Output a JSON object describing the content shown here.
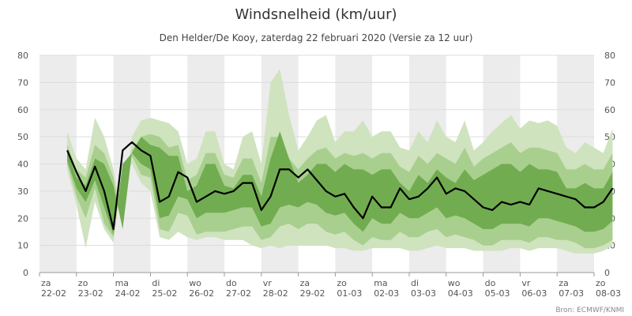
{
  "chart_data": {
    "type": "area",
    "title": "Windsnelheid (km/uur)",
    "subtitle": "Den Helder/De Kooy, zaterdag 22 februari 2020 (Versie za 12 uur)",
    "credit": "Bron: ECMWF/KNMI",
    "ylim": [
      0,
      80
    ],
    "yticks": [
      "0",
      "10",
      "20",
      "30",
      "40",
      "50",
      "60",
      "70",
      "80"
    ],
    "grid": true,
    "alternating_day_shading": true,
    "x_start": "2020-02-22",
    "x_end": "2020-03-08",
    "day_labels": [
      {
        "day": "za",
        "date": "22-02"
      },
      {
        "day": "zo",
        "date": "23-02"
      },
      {
        "day": "ma",
        "date": "24-02"
      },
      {
        "day": "di",
        "date": "25-02"
      },
      {
        "day": "wo",
        "date": "26-02"
      },
      {
        "day": "do",
        "date": "27-02"
      },
      {
        "day": "vr",
        "date": "28-02"
      },
      {
        "day": "za",
        "date": "29-02"
      },
      {
        "day": "zo",
        "date": "01-03"
      },
      {
        "day": "ma",
        "date": "02-03"
      },
      {
        "day": "di",
        "date": "03-03"
      },
      {
        "day": "wo",
        "date": "04-03"
      },
      {
        "day": "do",
        "date": "05-03"
      },
      {
        "day": "vr",
        "date": "06-03"
      },
      {
        "day": "za",
        "date": "07-03"
      },
      {
        "day": "zo",
        "date": "08-03"
      }
    ],
    "x": [
      "2020-02-22T18:00",
      "2020-02-23T00:00",
      "2020-02-23T06:00",
      "2020-02-23T12:00",
      "2020-02-23T18:00",
      "2020-02-24T00:00",
      "2020-02-24T06:00",
      "2020-02-24T12:00",
      "2020-02-24T18:00",
      "2020-02-25T00:00",
      "2020-02-25T06:00",
      "2020-02-25T12:00",
      "2020-02-25T18:00",
      "2020-02-26T00:00",
      "2020-02-26T06:00",
      "2020-02-26T12:00",
      "2020-02-26T18:00",
      "2020-02-27T00:00",
      "2020-02-27T06:00",
      "2020-02-27T12:00",
      "2020-02-27T18:00",
      "2020-02-28T00:00",
      "2020-02-28T06:00",
      "2020-02-28T12:00",
      "2020-02-28T18:00",
      "2020-02-29T00:00",
      "2020-02-29T06:00",
      "2020-02-29T12:00",
      "2020-02-29T18:00",
      "2020-03-01T00:00",
      "2020-03-01T06:00",
      "2020-03-01T12:00",
      "2020-03-01T18:00",
      "2020-03-02T00:00",
      "2020-03-02T06:00",
      "2020-03-02T12:00",
      "2020-03-02T18:00",
      "2020-03-03T00:00",
      "2020-03-03T06:00",
      "2020-03-03T12:00",
      "2020-03-03T18:00",
      "2020-03-04T00:00",
      "2020-03-04T06:00",
      "2020-03-04T12:00",
      "2020-03-04T18:00",
      "2020-03-05T00:00",
      "2020-03-05T06:00",
      "2020-03-05T12:00",
      "2020-03-05T18:00",
      "2020-03-06T00:00",
      "2020-03-06T06:00",
      "2020-03-06T12:00",
      "2020-03-06T18:00",
      "2020-03-07T00:00",
      "2020-03-07T06:00",
      "2020-03-07T12:00",
      "2020-03-07T18:00",
      "2020-03-08T00:00",
      "2020-03-08T06:00",
      "2020-03-08T12:00"
    ],
    "series": [
      {
        "role": "outer_upper",
        "color": "#cfe3bf",
        "values": [
          52,
          42,
          38,
          57,
          50,
          38,
          20,
          50,
          56,
          57,
          56,
          55,
          52,
          40,
          42,
          52,
          52,
          40,
          38,
          50,
          52,
          40,
          70,
          75,
          58,
          45,
          50,
          56,
          58,
          48,
          52,
          52,
          56,
          50,
          52,
          52,
          46,
          45,
          52,
          48,
          56,
          50,
          48,
          56,
          45,
          48,
          52,
          55,
          58,
          53,
          56,
          55,
          56,
          54,
          46,
          44,
          48,
          46,
          44,
          53
        ]
      },
      {
        "role": "inner_upper",
        "color": "#a9cf8f",
        "values": [
          47,
          38,
          35,
          47,
          44,
          35,
          17,
          45,
          50,
          51,
          50,
          46,
          47,
          34,
          36,
          44,
          44,
          36,
          35,
          42,
          42,
          33,
          50,
          50,
          42,
          38,
          42,
          45,
          46,
          42,
          44,
          43,
          44,
          42,
          44,
          44,
          39,
          37,
          43,
          40,
          44,
          42,
          40,
          46,
          39,
          42,
          44,
          46,
          48,
          44,
          46,
          46,
          45,
          44,
          38,
          38,
          40,
          38,
          38,
          44
        ]
      },
      {
        "role": "core_upper",
        "color": "#71ad50",
        "values": [
          45,
          35,
          32,
          42,
          40,
          32,
          16,
          44,
          50,
          47,
          46,
          43,
          43,
          30,
          32,
          40,
          40,
          32,
          31,
          36,
          36,
          28,
          42,
          52,
          42,
          33,
          36,
          40,
          40,
          37,
          40,
          38,
          38,
          36,
          38,
          38,
          33,
          30,
          36,
          33,
          38,
          35,
          33,
          38,
          34,
          36,
          38,
          40,
          40,
          37,
          40,
          38,
          38,
          37,
          31,
          31,
          33,
          31,
          31,
          37
        ]
      },
      {
        "role": "median",
        "color": "#000000",
        "values": [
          45,
          37,
          30,
          39,
          30,
          16,
          45,
          48,
          45,
          43,
          26,
          28,
          37,
          35,
          26,
          28,
          30,
          29,
          30,
          33,
          33,
          23,
          28,
          38,
          38,
          35,
          38,
          34,
          30,
          28,
          29,
          24,
          20,
          28,
          24,
          24,
          31,
          27,
          28,
          31,
          35,
          29,
          31,
          30,
          27,
          24,
          23,
          26,
          25,
          26,
          25,
          31,
          30,
          29,
          28,
          27,
          24,
          24,
          26,
          31
        ]
      },
      {
        "role": "core_lower",
        "color": "#71ad50",
        "values": [
          41,
          31,
          26,
          34,
          24,
          14,
          40,
          44,
          40,
          38,
          20,
          21,
          28,
          27,
          20,
          22,
          22,
          22,
          23,
          24,
          24,
          17,
          18,
          24,
          25,
          24,
          26,
          25,
          22,
          21,
          22,
          18,
          15,
          20,
          18,
          18,
          22,
          20,
          20,
          22,
          24,
          20,
          21,
          20,
          18,
          16,
          16,
          18,
          18,
          18,
          17,
          20,
          20,
          19,
          18,
          17,
          15,
          15,
          16,
          19
        ]
      },
      {
        "role": "inner_lower",
        "color": "#a9cf8f",
        "values": [
          40,
          28,
          20,
          31,
          18,
          13,
          38,
          43,
          36,
          35,
          16,
          15,
          22,
          21,
          14,
          15,
          15,
          15,
          16,
          17,
          17,
          12,
          13,
          17,
          18,
          16,
          18,
          18,
          15,
          14,
          15,
          12,
          10,
          13,
          12,
          12,
          15,
          13,
          13,
          15,
          16,
          13,
          14,
          13,
          12,
          10,
          10,
          12,
          12,
          12,
          11,
          13,
          13,
          12,
          12,
          11,
          9,
          9,
          10,
          12
        ]
      },
      {
        "role": "outer_lower",
        "color": "#cfe3bf",
        "values": [
          38,
          25,
          9,
          26,
          16,
          11,
          36,
          40,
          33,
          30,
          13,
          12,
          15,
          13,
          12,
          13,
          13,
          12,
          12,
          12,
          10,
          9,
          10,
          9,
          10,
          10,
          10,
          10,
          10,
          9,
          9,
          8,
          8,
          9,
          9,
          9,
          9,
          8,
          8,
          9,
          10,
          9,
          9,
          9,
          8,
          8,
          8,
          8,
          9,
          9,
          8,
          9,
          9,
          9,
          8,
          7,
          7,
          7,
          8,
          10
        ]
      }
    ]
  }
}
